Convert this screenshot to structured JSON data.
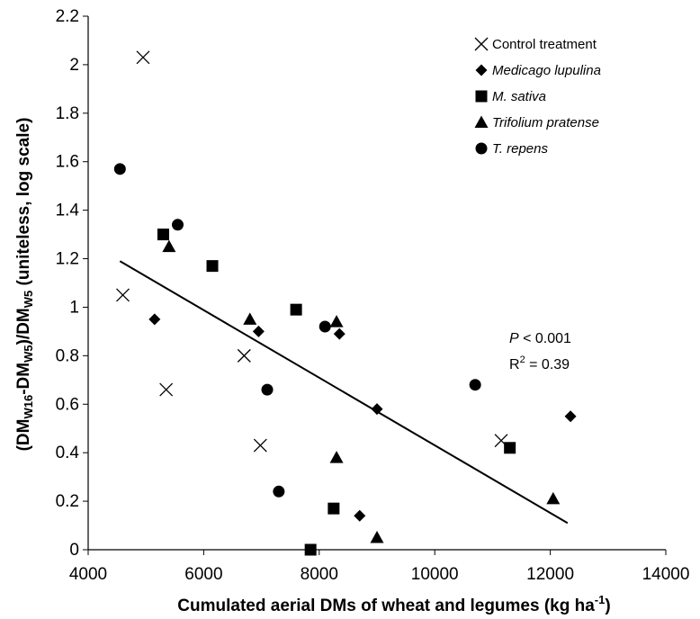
{
  "chart_data": {
    "type": "scatter",
    "xlabel": "Cumulated aerial DMs of wheat and legumes (kg ha",
    "xlabel_superscript": "-1",
    "xlabel_close": ")",
    "ylabel_parts": {
      "open": "(DM",
      "sub1": "W16",
      "dash": "-DM",
      "sub2": "W5",
      "mid": ")/DM",
      "sub3": "W5",
      "tail": " (uniteless, log scale)"
    },
    "xlim": [
      4000,
      14000
    ],
    "ylim": [
      0,
      2.2
    ],
    "x_ticks": [
      4000,
      6000,
      8000,
      10000,
      12000,
      14000
    ],
    "y_ticks": [
      0,
      0.2,
      0.4,
      0.6,
      0.8,
      1,
      1.2,
      1.4,
      1.6,
      1.8,
      2,
      2.2
    ],
    "x_tick_labels": [
      "4000",
      "6000",
      "8000",
      "10000",
      "12000",
      "14000"
    ],
    "y_tick_labels": [
      "0",
      "0.2",
      "0.4",
      "0.6",
      "0.8",
      "1",
      "1.2",
      "1.4",
      "1.6",
      "1.8",
      "2",
      "2.2"
    ],
    "grid": false,
    "legend_position": "top-right",
    "series": [
      {
        "name": "Control treatment",
        "marker": "x",
        "italic": false,
        "points": [
          [
            4950,
            2.03
          ],
          [
            4600,
            1.05
          ],
          [
            5350,
            0.66
          ],
          [
            6700,
            0.8
          ],
          [
            6980,
            0.43
          ],
          [
            11150,
            0.45
          ]
        ]
      },
      {
        "name": "Medicago lupulina",
        "marker": "diamond",
        "italic": true,
        "points": [
          [
            5150,
            0.95
          ],
          [
            6950,
            0.9
          ],
          [
            8350,
            0.89
          ],
          [
            9000,
            0.58
          ],
          [
            8700,
            0.14
          ],
          [
            12350,
            0.55
          ]
        ]
      },
      {
        "name": "M. sativa",
        "marker": "square",
        "italic": true,
        "points": [
          [
            5300,
            1.3
          ],
          [
            6150,
            1.17
          ],
          [
            7600,
            0.99
          ],
          [
            8250,
            0.17
          ],
          [
            7850,
            0.0
          ],
          [
            11300,
            0.42
          ]
        ]
      },
      {
        "name": "Trifolium pratense",
        "marker": "triangle",
        "italic": true,
        "points": [
          [
            5400,
            1.25
          ],
          [
            6800,
            0.95
          ],
          [
            8300,
            0.94
          ],
          [
            8300,
            0.38
          ],
          [
            9000,
            0.05
          ],
          [
            12050,
            0.21
          ]
        ]
      },
      {
        "name": "T. repens",
        "marker": "circle",
        "italic": true,
        "points": [
          [
            4550,
            1.57
          ],
          [
            5550,
            1.34
          ],
          [
            8100,
            0.92
          ],
          [
            7100,
            0.66
          ],
          [
            7300,
            0.24
          ],
          [
            10700,
            0.68
          ]
        ]
      }
    ],
    "regression_line": {
      "x": [
        4550,
        12300
      ],
      "y": [
        1.19,
        0.11
      ]
    },
    "annotation": {
      "p_italic": "P",
      "p_rest": " < 0.001",
      "r2_prefix": "R",
      "r2_sup": "2",
      "r2_rest": " = 0.39"
    }
  }
}
